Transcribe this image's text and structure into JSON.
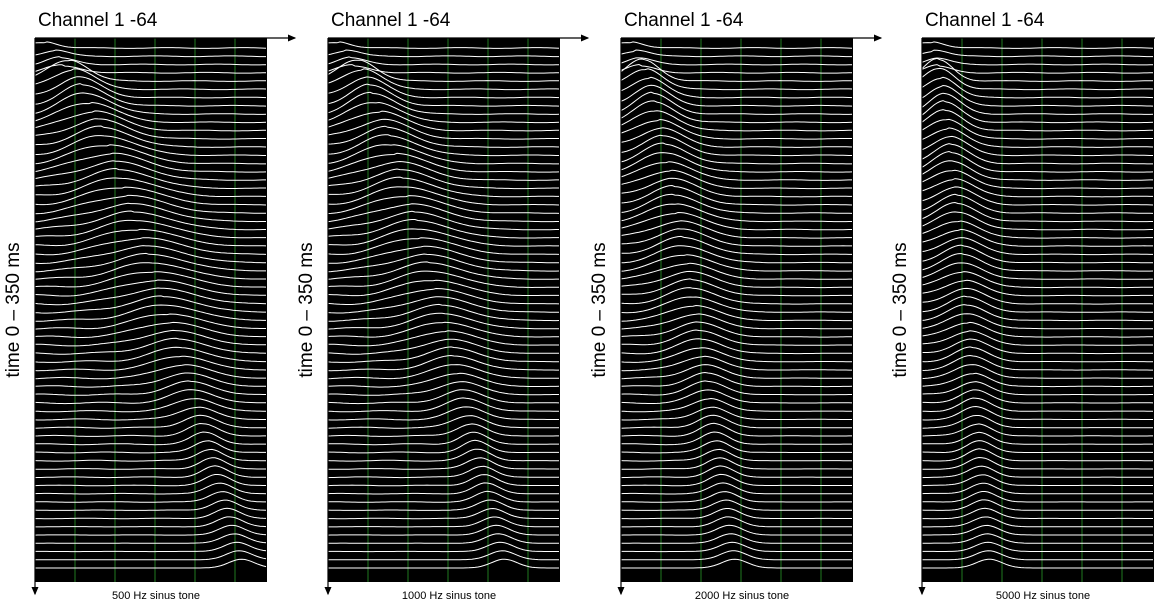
{
  "panels": [
    {
      "title": "Channel 1 -64",
      "ylabel": "time 0 – 350 ms",
      "caption": "500 Hz sinus tone"
    },
    {
      "title": "Channel 1 -64",
      "ylabel": "time 0 – 350 ms",
      "caption": "1000 Hz sinus tone"
    },
    {
      "title": "Channel 1 -64",
      "ylabel": "time 0 – 350 ms",
      "caption": "2000 Hz sinus tone"
    },
    {
      "title": "Channel 1 -64",
      "ylabel": "time 0 – 350 ms",
      "caption": "5000 Hz sinus tone"
    }
  ]
}
